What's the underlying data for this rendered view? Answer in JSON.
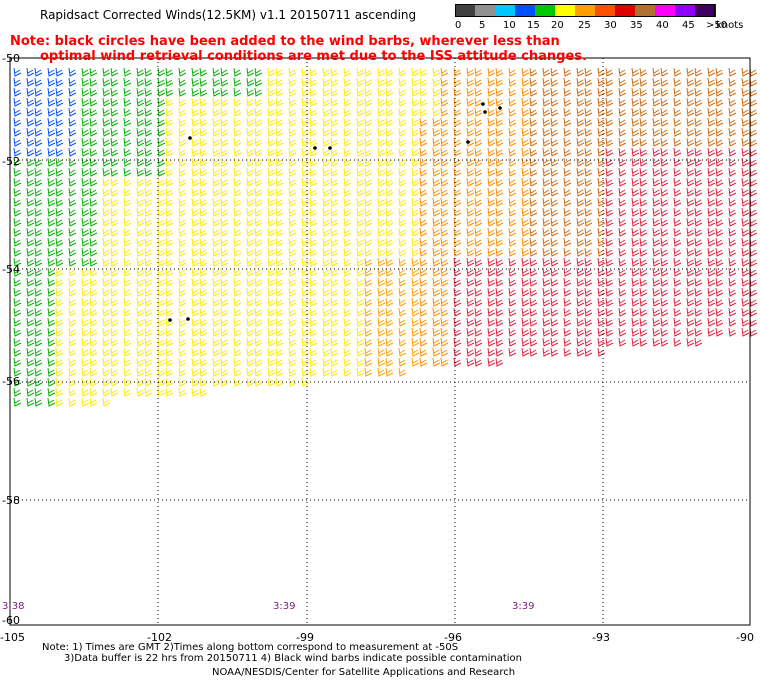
{
  "title": "Rapidsact Corrected Winds(12.5KM) v1.1 20150711 ascending",
  "note_line1": "Note: black circles have been added to the wind barbs, wherever less than",
  "note_line2": "optimal wind retrieval conditions are met due to the ISS attitude changes.",
  "color_scale": {
    "labels": [
      "0",
      "5",
      "10",
      "15",
      "20",
      "25",
      "30",
      "35",
      "40",
      "45",
      ">50"
    ],
    "unit": "knots",
    "colors": [
      "#404040",
      "#909090",
      "#00c8ff",
      "#0050ff",
      "#00c800",
      "#ffff00",
      "#ffa000",
      "#ff5000",
      "#e00000",
      "#b07030",
      "#ff00ff",
      "#9000ff",
      "#400060"
    ]
  },
  "lat_labels": [
    "-50",
    "-52",
    "-54",
    "-56",
    "-58",
    "-60"
  ],
  "lon_labels": [
    "-105",
    "-102",
    "-99",
    "-96",
    "-93",
    "-90"
  ],
  "pass_times": [
    "3:38",
    "3:39",
    "3:39"
  ],
  "footer_line1": "Note: 1) Times are GMT 2)Times along bottom correspond to measurement at -50S",
  "footer_line2": "3)Data buffer is 22 hrs from 20150711 4) Black wind barbs indicate possible contamination",
  "footer_line3": "NOAA/NESDIS/Center for Satellite Applications and Research"
}
